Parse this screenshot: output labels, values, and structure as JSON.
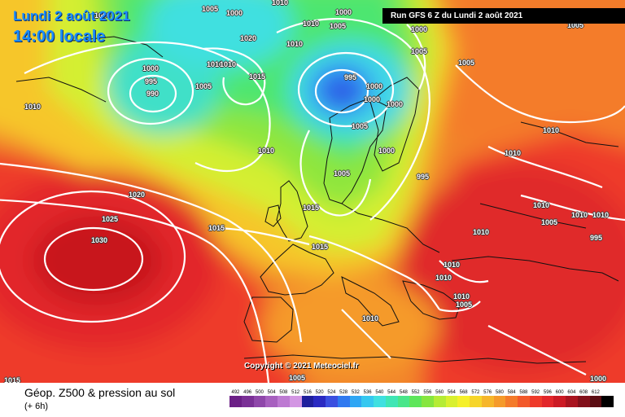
{
  "header": {
    "date": "Lundi 2 août 2021",
    "time": "14:00 locale",
    "run": "Run GFS 6 Z du Lundi 2 août 2021"
  },
  "copyright": "Copyright © 2021 Meteociel.fr",
  "legend": {
    "title": "Géop. Z500 & pression au sol",
    "subtitle": "(+ 6h)",
    "scale": [
      {
        "label": "492",
        "color": "#6b1f86"
      },
      {
        "label": "496",
        "color": "#7a3096"
      },
      {
        "label": "500",
        "color": "#8f47aa"
      },
      {
        "label": "504",
        "color": "#a760bf"
      },
      {
        "label": "508",
        "color": "#bd7ad2"
      },
      {
        "label": "512",
        "color": "#d396e3"
      },
      {
        "label": "516",
        "color": "#1f1f9c"
      },
      {
        "label": "520",
        "color": "#2a2ac2"
      },
      {
        "label": "524",
        "color": "#3a4fe0"
      },
      {
        "label": "528",
        "color": "#2f79f0"
      },
      {
        "label": "532",
        "color": "#2ea6f4"
      },
      {
        "label": "536",
        "color": "#35c8f0"
      },
      {
        "label": "540",
        "color": "#3fe0e0"
      },
      {
        "label": "544",
        "color": "#3fe6b5"
      },
      {
        "label": "548",
        "color": "#48e68a"
      },
      {
        "label": "552",
        "color": "#5de65a"
      },
      {
        "label": "556",
        "color": "#86e63f"
      },
      {
        "label": "560",
        "color": "#b5ec35"
      },
      {
        "label": "564",
        "color": "#d9f02f"
      },
      {
        "label": "568",
        "color": "#f5f02a"
      },
      {
        "label": "572",
        "color": "#f6d52a"
      },
      {
        "label": "576",
        "color": "#f6b62a"
      },
      {
        "label": "580",
        "color": "#f59a2a"
      },
      {
        "label": "584",
        "color": "#f47b2a"
      },
      {
        "label": "588",
        "color": "#f2592a"
      },
      {
        "label": "592",
        "color": "#ee3a2a"
      },
      {
        "label": "596",
        "color": "#e2262a"
      },
      {
        "label": "600",
        "color": "#cc1a24"
      },
      {
        "label": "604",
        "color": "#a9141f"
      },
      {
        "label": "608",
        "color": "#82101a"
      },
      {
        "label": "612",
        "color": "#5a0c12"
      },
      {
        "label": "",
        "color": "#000000"
      }
    ]
  },
  "isobars": [
    {
      "v": "1005"
    },
    {
      "v": "1000"
    },
    {
      "v": "1010"
    },
    {
      "v": "1010"
    },
    {
      "v": "1000"
    },
    {
      "v": "1005"
    },
    {
      "v": "1005"
    },
    {
      "v": "1000"
    },
    {
      "v": "995"
    },
    {
      "v": "990"
    },
    {
      "v": "1010"
    },
    {
      "v": "1010"
    },
    {
      "v": "1005"
    },
    {
      "v": "1015"
    },
    {
      "v": "1010"
    },
    {
      "v": "995"
    },
    {
      "v": "1000"
    },
    {
      "v": "1000"
    },
    {
      "v": "1005"
    },
    {
      "v": "1000"
    },
    {
      "v": "1010"
    },
    {
      "v": "1000"
    },
    {
      "v": "1005"
    },
    {
      "v": "995"
    },
    {
      "v": "1020"
    },
    {
      "v": "1025"
    },
    {
      "v": "1030"
    },
    {
      "v": "1015"
    },
    {
      "v": "1015"
    },
    {
      "v": "1015"
    },
    {
      "v": "1010"
    },
    {
      "v": "1010"
    },
    {
      "v": "1010"
    },
    {
      "v": "1010"
    },
    {
      "v": "1005"
    },
    {
      "v": "1010"
    },
    {
      "v": "1010"
    },
    {
      "v": "995"
    },
    {
      "v": "1010"
    },
    {
      "v": "1005"
    },
    {
      "v": "1010"
    },
    {
      "v": "1010"
    },
    {
      "v": "1015"
    },
    {
      "v": "1005"
    },
    {
      "v": "1020"
    },
    {
      "v": "1000"
    },
    {
      "v": "1005"
    },
    {
      "v": "1000"
    },
    {
      "v": "1010"
    },
    {
      "v": "1005"
    },
    {
      "v": "1000"
    },
    {
      "v": "1010"
    }
  ]
}
